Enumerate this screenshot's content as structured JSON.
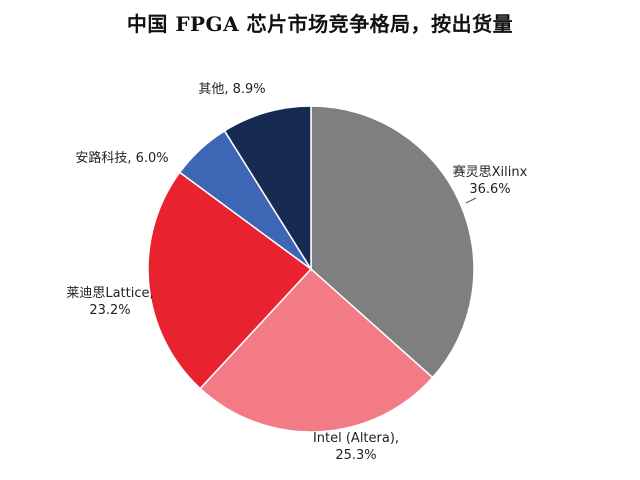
{
  "title": "中国 FPGA 芯片市场竞争格局，按出货量",
  "chart_data": {
    "type": "pie",
    "title": "中国 FPGA 芯片市场竞争格局，按出货量",
    "start": "12 o'clock",
    "direction": "clockwise",
    "slices": [
      {
        "name": "赛灵思Xilinx",
        "value": 36.6,
        "label": "36.6%",
        "color": "#7f7f7f"
      },
      {
        "name": "Intel (Altera),",
        "value": 25.3,
        "label": "25.3%",
        "color": "#f27b86"
      },
      {
        "name": "莱迪思Lattice,",
        "value": 23.2,
        "label": "23.2%",
        "color": "#e8222f"
      },
      {
        "name": "安路科技,",
        "value": 6.0,
        "label": "6.0%",
        "color": "#3d67b5"
      },
      {
        "name": "其他,",
        "value": 8.9,
        "label": "8.9%",
        "color": "#172b52"
      }
    ]
  }
}
